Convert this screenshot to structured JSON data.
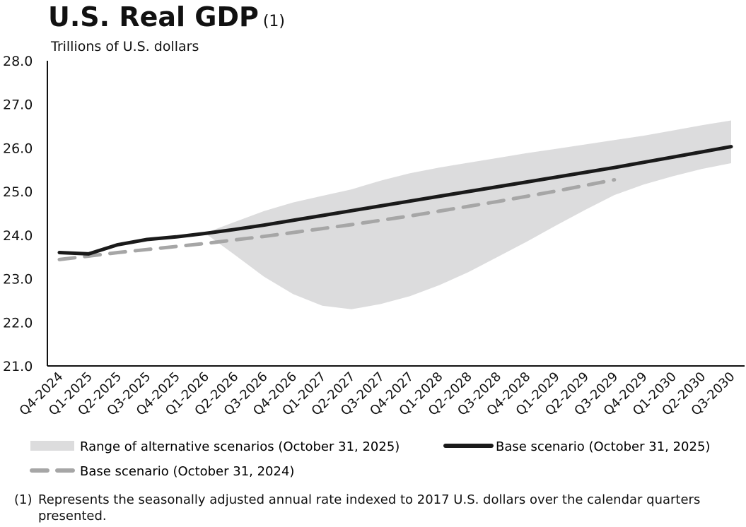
{
  "chart_data": {
    "type": "line",
    "title": "U.S. Real GDP",
    "title_note": "(1)",
    "ylabel": "Trillions of U.S. dollars",
    "xlabel": "",
    "ylim": [
      21.0,
      28.0
    ],
    "y_ticks": [
      "28.0",
      "27.0",
      "26.0",
      "25.0",
      "24.0",
      "23.0",
      "22.0",
      "21.0"
    ],
    "y_tick_values": [
      28,
      27,
      26,
      25,
      24,
      23,
      22,
      21
    ],
    "categories": [
      "Q4-2024",
      "Q1-2025",
      "Q2-2025",
      "Q3-2025",
      "Q4-2025",
      "Q1-2026",
      "Q2-2026",
      "Q3-2026",
      "Q4-2026",
      "Q1-2027",
      "Q2-2027",
      "Q3-2027",
      "Q4-2027",
      "Q1-2028",
      "Q2-2028",
      "Q3-2028",
      "Q4-2028",
      "Q1-2029",
      "Q2-2029",
      "Q3-2029",
      "Q4-2029",
      "Q1-2030",
      "Q2-2030",
      "Q3-2030"
    ],
    "series": [
      {
        "name": "Base scenario (October 31, 2025)",
        "style": "solid",
        "color": "#1a1a1a",
        "values": [
          23.6,
          23.57,
          23.78,
          23.9,
          23.96,
          24.04,
          24.13,
          24.23,
          24.34,
          24.45,
          24.56,
          24.67,
          24.78,
          24.89,
          25.0,
          25.11,
          25.22,
          25.33,
          25.44,
          25.55,
          25.67,
          25.79,
          25.91,
          26.03
        ]
      },
      {
        "name": "Base scenario (October 31, 2024)",
        "style": "dashed",
        "color": "#a6a6a6",
        "values": [
          23.44,
          23.52,
          23.6,
          23.67,
          23.74,
          23.81,
          23.89,
          23.97,
          24.06,
          24.15,
          24.24,
          24.34,
          24.44,
          24.55,
          24.66,
          24.77,
          24.89,
          25.01,
          25.14,
          25.27,
          null,
          null,
          null,
          null
        ]
      }
    ],
    "band": {
      "name": "Range of alternative scenarios (October 31, 2025)",
      "color": "#dcdcdd",
      "upper": [
        null,
        null,
        null,
        null,
        null,
        24.05,
        24.3,
        24.55,
        24.75,
        24.9,
        25.05,
        25.25,
        25.42,
        25.55,
        25.66,
        25.77,
        25.88,
        25.98,
        26.08,
        26.18,
        26.28,
        26.4,
        26.52,
        26.63
      ],
      "lower": [
        null,
        null,
        null,
        null,
        null,
        24.04,
        23.55,
        23.05,
        22.65,
        22.38,
        22.3,
        22.42,
        22.6,
        22.85,
        23.15,
        23.5,
        23.85,
        24.22,
        24.58,
        24.92,
        25.16,
        25.35,
        25.52,
        25.65
      ]
    },
    "legend": [
      {
        "label": "Range of alternative scenarios (October 31, 2025)",
        "kind": "band"
      },
      {
        "label": "Base scenario (October 31, 2025)",
        "kind": "solid"
      },
      {
        "label": "Base scenario (October 31, 2024)",
        "kind": "dashed"
      }
    ],
    "footnote_marker": "(1)",
    "footnote": "Represents the seasonally adjusted annual rate indexed to 2017 U.S. dollars over the calendar quarters presented."
  }
}
